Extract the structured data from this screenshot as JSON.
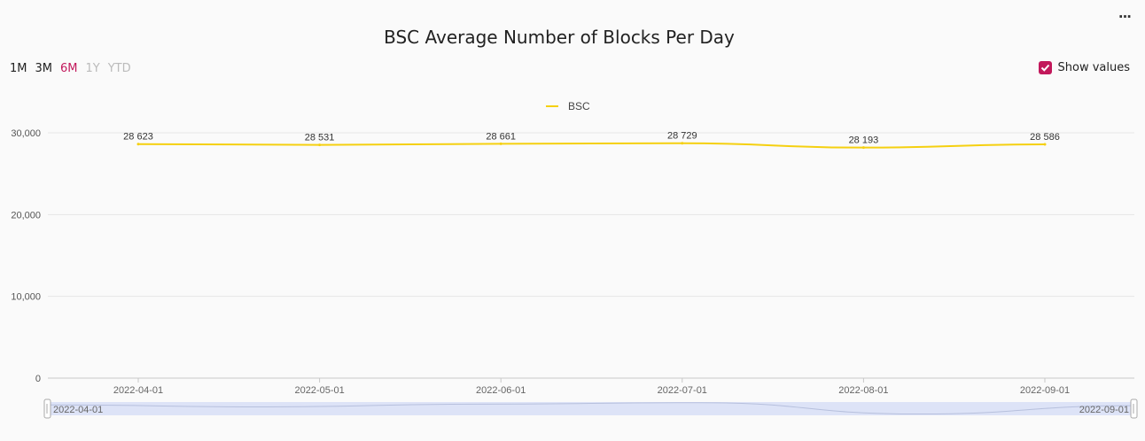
{
  "menu_label": "···",
  "range_selector": {
    "options": [
      "1M",
      "3M",
      "6M",
      "1Y",
      "YTD"
    ],
    "active": "6M"
  },
  "toggle": {
    "label": "Show values",
    "checked": true
  },
  "colors": {
    "series": "#f5d010",
    "accent": "#c2185b",
    "navigator_fill": "#dde3f7"
  },
  "chart_data": {
    "type": "line",
    "title": "BSC Average Number of Blocks Per Day",
    "x": [
      "2022-04-01",
      "2022-05-01",
      "2022-06-01",
      "2022-07-01",
      "2022-08-01",
      "2022-09-01"
    ],
    "series": [
      {
        "name": "BSC",
        "values": [
          28623,
          28531,
          28661,
          28729,
          28193,
          28586
        ]
      }
    ],
    "data_labels": [
      "28 623",
      "28 531",
      "28 661",
      "28 729",
      "28 193",
      "28 586"
    ],
    "y_ticks": [
      "0",
      "10,000",
      "20,000",
      "30,000"
    ],
    "ylim": [
      0,
      30000
    ],
    "legend_position": "top-center",
    "grid": true,
    "navigator": {
      "start_label": "2022-04-01",
      "end_label": "2022-09-01"
    }
  }
}
